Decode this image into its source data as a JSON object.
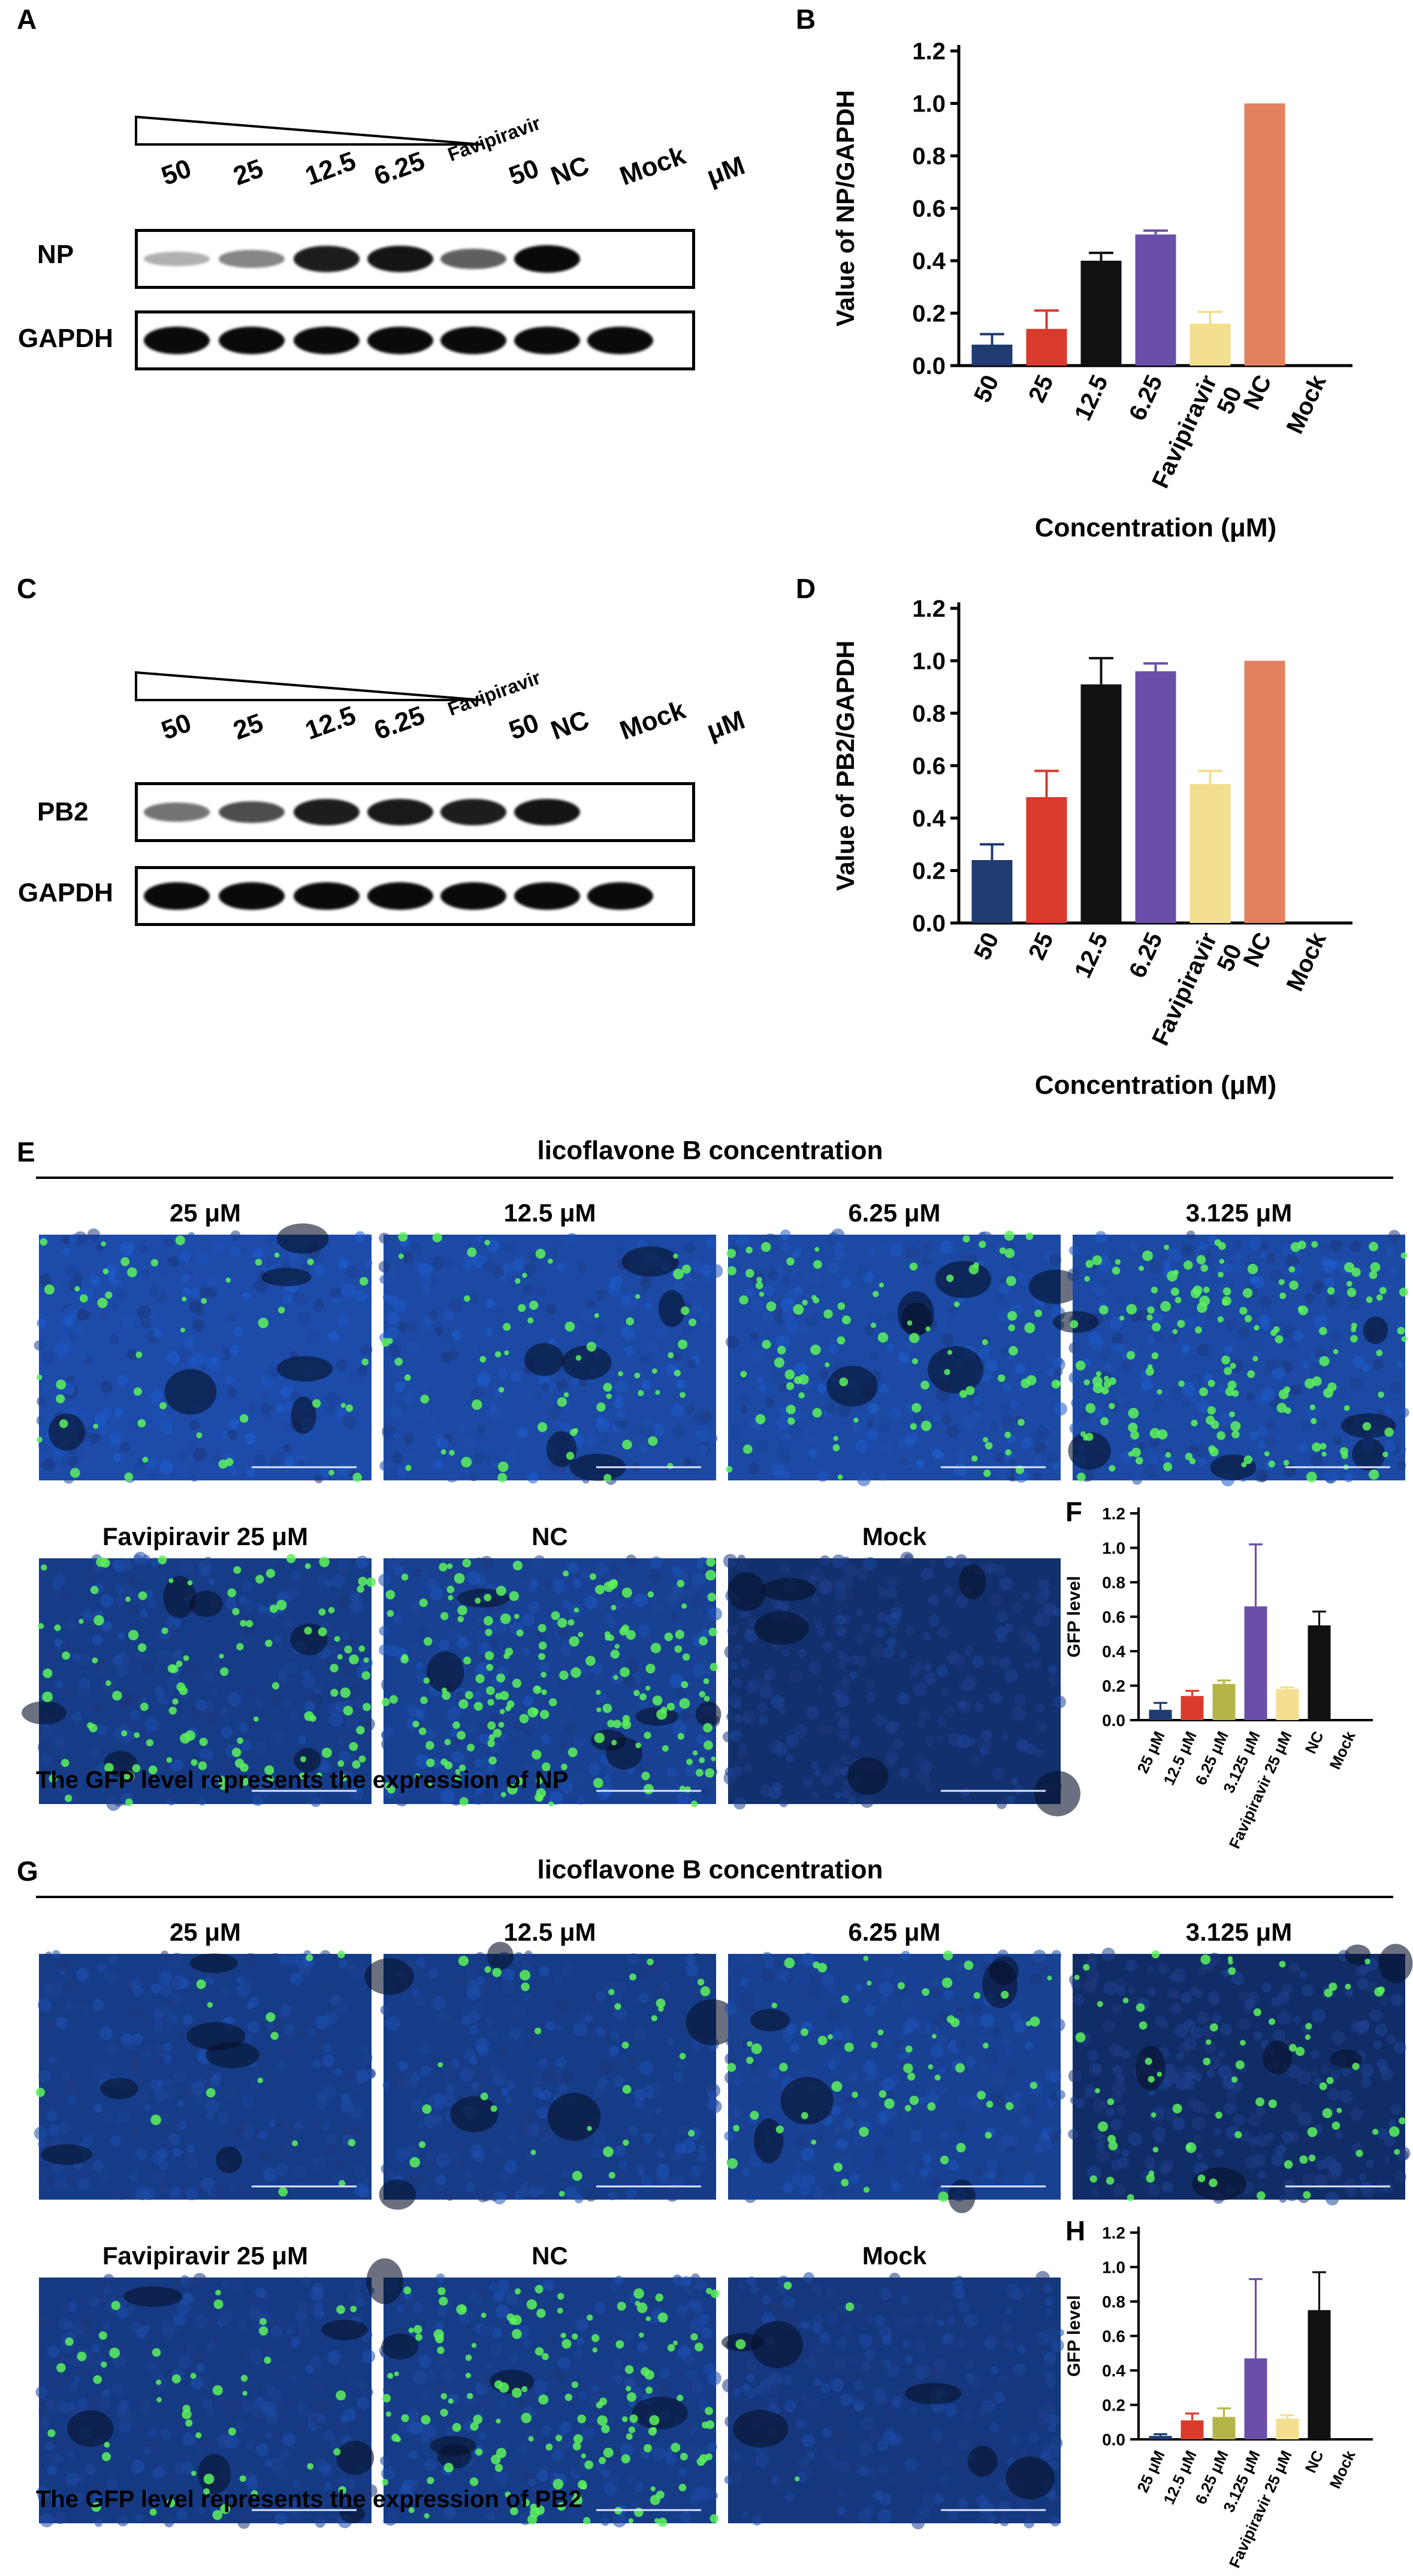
{
  "panels": {
    "A": "A",
    "B": "B",
    "C": "C",
    "D": "D",
    "E": "E",
    "F": "F",
    "G": "G",
    "H": "H"
  },
  "blots": {
    "lanes": [
      "50",
      "25",
      "12.5",
      "6.25",
      "Favipiravir",
      "50",
      "NC",
      "Mock",
      "μM"
    ],
    "A": {
      "target": "NP",
      "control": "GAPDH",
      "target_intensity": [
        0.12,
        0.35,
        0.9,
        0.95,
        0.55,
        1.0,
        0.0
      ],
      "control_intensity": [
        1,
        1,
        1,
        1,
        1,
        1,
        1
      ]
    },
    "C": {
      "target": "PB2",
      "control": "GAPDH",
      "target_intensity": [
        0.45,
        0.65,
        0.9,
        0.92,
        0.9,
        0.95,
        0.0
      ],
      "control_intensity": [
        1,
        1,
        1,
        1,
        1,
        1,
        1
      ]
    }
  },
  "chart_data": [
    {
      "type": "bar",
      "panel": "B",
      "categories": [
        "50",
        "25",
        "12.5",
        "6.25",
        "Favipiravir\n50",
        "NC",
        "Mock"
      ],
      "values": [
        0.08,
        0.14,
        0.4,
        0.5,
        0.16,
        1.0,
        0.0
      ],
      "errors": [
        0.04,
        0.07,
        0.03,
        0.015,
        0.045,
        0.0,
        0.0
      ],
      "colors": [
        "#1f3b70",
        "#d93a2b",
        "#111111",
        "#6a4fa8",
        "#f3df8f",
        "#e3805e",
        "#cccccc"
      ],
      "xlabel": "Concentration (μM)",
      "ylabel": "Value of NP/GAPDH",
      "ylim": [
        0,
        1.2
      ],
      "yticks": [
        "0.0",
        "0.2",
        "0.4",
        "0.6",
        "0.8",
        "1.0",
        "1.2"
      ]
    },
    {
      "type": "bar",
      "panel": "D",
      "categories": [
        "50",
        "25",
        "12.5",
        "6.25",
        "Favipiravir\n50",
        "NC",
        "Mock"
      ],
      "values": [
        0.24,
        0.48,
        0.91,
        0.96,
        0.53,
        1.0,
        0.0
      ],
      "errors": [
        0.06,
        0.1,
        0.1,
        0.03,
        0.05,
        0.0,
        0.0
      ],
      "colors": [
        "#1f3b70",
        "#d93a2b",
        "#111111",
        "#6a4fa8",
        "#f3df8f",
        "#e3805e",
        "#cccccc"
      ],
      "xlabel": "Concentration (μM)",
      "ylabel": "Value of PB2/GAPDH",
      "ylim": [
        0,
        1.2
      ],
      "yticks": [
        "0.0",
        "0.2",
        "0.4",
        "0.6",
        "0.8",
        "1.0",
        "1.2"
      ]
    },
    {
      "type": "bar",
      "panel": "F",
      "categories": [
        "25 μM",
        "12.5 μM",
        "6.25 μM",
        "3.125 μM",
        "Favipiravir 25 μM",
        "NC",
        "Mock"
      ],
      "values": [
        0.06,
        0.14,
        0.21,
        0.66,
        0.18,
        0.55,
        0.0
      ],
      "errors": [
        0.04,
        0.03,
        0.02,
        0.36,
        0.01,
        0.08,
        0.0
      ],
      "colors": [
        "#1f3b70",
        "#d93a2b",
        "#b3b646",
        "#6a4fa8",
        "#f3df8f",
        "#111111",
        "#cccccc"
      ],
      "ylabel": "GFP level",
      "ylim": [
        0,
        1.2
      ],
      "yticks": [
        "0.0",
        "0.2",
        "0.4",
        "0.6",
        "0.8",
        "1.0",
        "1.2"
      ]
    },
    {
      "type": "bar",
      "panel": "H",
      "categories": [
        "25 μM",
        "12.5 μM",
        "6.25 μM",
        "3.125 μM",
        "Favipiravir 25 μM",
        "NC",
        "Mock"
      ],
      "values": [
        0.02,
        0.11,
        0.13,
        0.47,
        0.12,
        0.75,
        0.0
      ],
      "errors": [
        0.01,
        0.04,
        0.05,
        0.46,
        0.02,
        0.22,
        0.0
      ],
      "colors": [
        "#1f3b70",
        "#d93a2b",
        "#b3b646",
        "#6a4fa8",
        "#f3df8f",
        "#111111",
        "#cccccc"
      ],
      "ylabel": "GFP level",
      "ylim": [
        0,
        1.2
      ],
      "yticks": [
        "0.0",
        "0.2",
        "0.4",
        "0.6",
        "0.8",
        "1.0",
        "1.2"
      ]
    }
  ],
  "microscopy": {
    "E": {
      "title": "licoflavone B concentration",
      "labels": [
        "25 μM",
        "12.5 μM",
        "6.25 μM",
        "3.125 μM",
        "Favipiravir 25 μM",
        "NC",
        "Mock"
      ],
      "caption": "The GFP level represents the expression of NP",
      "green_density": [
        0.25,
        0.35,
        0.5,
        0.9,
        0.6,
        1.0,
        0.0
      ],
      "blue_level": [
        0.9,
        0.85,
        0.85,
        0.85,
        0.6,
        0.7,
        0.35
      ]
    },
    "G": {
      "title": "licoflavone B concentration",
      "labels": [
        "25 μM",
        "12.5 μM",
        "6.25 μM",
        "3.125 μM",
        "Favipiravir 25 μM",
        "NC",
        "Mock"
      ],
      "caption": "The GFP level represents the expression of PB2",
      "green_density": [
        0.08,
        0.18,
        0.35,
        0.4,
        0.25,
        0.8,
        0.02
      ],
      "blue_level": [
        0.6,
        0.6,
        0.7,
        0.3,
        0.55,
        0.6,
        0.5
      ]
    }
  }
}
